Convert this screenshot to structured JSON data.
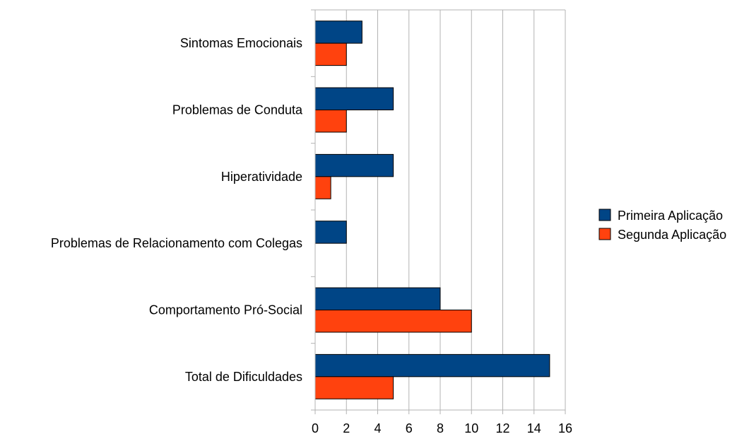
{
  "chart_data": {
    "type": "bar",
    "orientation": "horizontal",
    "title": "",
    "xlabel": "",
    "ylabel": "",
    "categories": [
      "Sintomas Emocionais",
      "Problemas de Conduta",
      "Hiperatividade",
      "Problemas de Relacionamento com Colegas",
      "Comportamento Pró-Social",
      "Total de Dificuldades"
    ],
    "series": [
      {
        "name": "Primeira Aplicação",
        "color": "#004586",
        "values": [
          3,
          5,
          5,
          2,
          8,
          15
        ]
      },
      {
        "name": "Segunda Aplicação",
        "color": "#ff420e",
        "values": [
          2,
          2,
          1,
          0,
          10,
          5
        ]
      }
    ],
    "xlim": [
      0,
      16
    ],
    "xticks": [
      "0",
      "2",
      "4",
      "6",
      "8",
      "10",
      "12",
      "14",
      "16"
    ],
    "grid": "vertical",
    "legend_position": "right"
  }
}
